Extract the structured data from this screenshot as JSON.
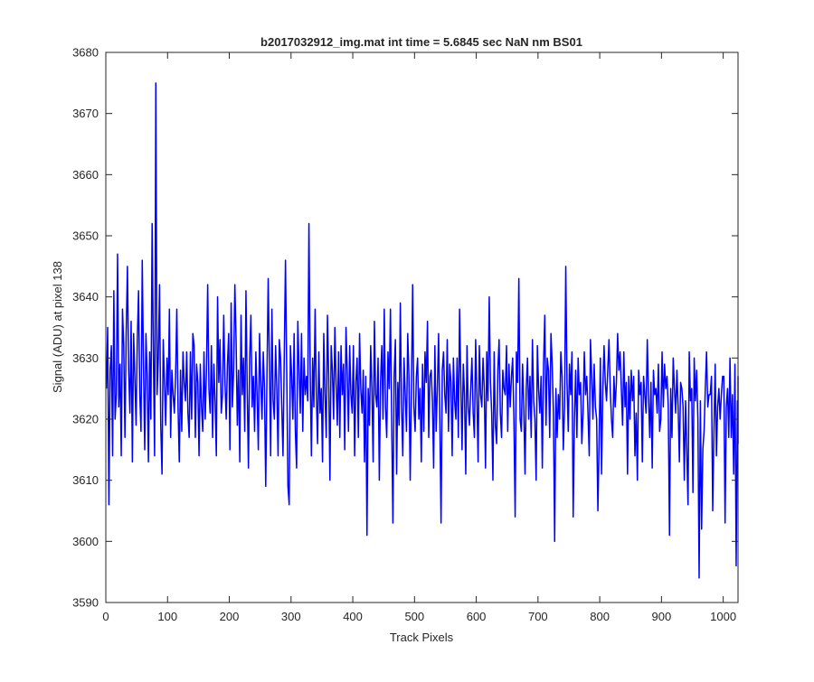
{
  "figure": {
    "background": "#ffffff",
    "axes_color": "#262626",
    "line_color": "#0000ff"
  },
  "chart_data": {
    "type": "line",
    "title": "b2017032912_img.mat int time = 5.6845 sec  NaN nm BS01",
    "xlabel": "Track Pixels",
    "ylabel": "Signal (ADU) at pixel 138",
    "xlim": [
      0,
      1024
    ],
    "ylim": [
      3590,
      3680
    ],
    "xticks": [
      0,
      100,
      200,
      300,
      400,
      500,
      600,
      700,
      800,
      900,
      1000
    ],
    "yticks": [
      3590,
      3600,
      3610,
      3620,
      3630,
      3640,
      3650,
      3660,
      3670,
      3680
    ],
    "grid": false,
    "legend": "none",
    "series": [
      {
        "color": "#0000ff",
        "sampling": "one point every 2 track pixels (downsampled trace of 1024 pixels)",
        "x_start": 1,
        "x_step": 2,
        "values": [
          3625,
          3635,
          3606,
          3628,
          3632,
          3614,
          3641,
          3620,
          3624,
          3647,
          3622,
          3629,
          3614,
          3638,
          3632,
          3617,
          3634,
          3645,
          3628,
          3621,
          3636,
          3613,
          3634,
          3627,
          3619,
          3633,
          3641,
          3624,
          3618,
          3646,
          3629,
          3615,
          3634,
          3627,
          3613,
          3631,
          3620,
          3652,
          3631,
          3614,
          3675,
          3624,
          3630,
          3642,
          3619,
          3611,
          3633,
          3626,
          3619,
          3630,
          3624,
          3638,
          3617,
          3628,
          3624,
          3621,
          3627,
          3638,
          3622,
          3613,
          3628,
          3618,
          3631,
          3626,
          3623,
          3631,
          3621,
          3617,
          3631,
          3620,
          3634,
          3632,
          3617,
          3629,
          3626,
          3614,
          3629,
          3622,
          3618,
          3631,
          3620,
          3628,
          3642,
          3625,
          3621,
          3632,
          3617,
          3629,
          3623,
          3614,
          3640,
          3626,
          3633,
          3621,
          3624,
          3637,
          3626,
          3620,
          3629,
          3634,
          3615,
          3639,
          3622,
          3628,
          3642,
          3633,
          3619,
          3628,
          3613,
          3637,
          3624,
          3630,
          3618,
          3641,
          3625,
          3612,
          3630,
          3637,
          3622,
          3627,
          3618,
          3631,
          3624,
          3615,
          3634,
          3626,
          3620,
          3631,
          3625,
          3609,
          3627,
          3643,
          3629,
          3614,
          3638,
          3623,
          3620,
          3632,
          3625,
          3614,
          3633,
          3630,
          3622,
          3614,
          3630,
          3646,
          3628,
          3609,
          3606,
          3632,
          3627,
          3620,
          3634,
          3618,
          3612,
          3636,
          3628,
          3621,
          3634,
          3618,
          3630,
          3624,
          3627,
          3623,
          3652,
          3628,
          3614,
          3630,
          3622,
          3638,
          3624,
          3616,
          3631,
          3621,
          3625,
          3613,
          3634,
          3624,
          3617,
          3637,
          3627,
          3610,
          3632,
          3628,
          3620,
          3635,
          3626,
          3619,
          3631,
          3617,
          3632,
          3624,
          3629,
          3615,
          3635,
          3628,
          3618,
          3632,
          3624,
          3621,
          3632,
          3614,
          3626,
          3630,
          3617,
          3634,
          3625,
          3621,
          3628,
          3613,
          3627,
          3601,
          3625,
          3619,
          3632,
          3625,
          3613,
          3636,
          3624,
          3622,
          3630,
          3610,
          3626,
          3632,
          3620,
          3638,
          3622,
          3617,
          3631,
          3625,
          3638,
          3620,
          3603,
          3627,
          3633,
          3611,
          3626,
          3619,
          3639,
          3622,
          3614,
          3630,
          3624,
          3618,
          3634,
          3627,
          3610,
          3625,
          3642,
          3622,
          3618,
          3627,
          3630,
          3620,
          3625,
          3613,
          3629,
          3618,
          3631,
          3626,
          3636,
          3617,
          3627,
          3628,
          3623,
          3612,
          3632,
          3618,
          3625,
          3634,
          3620,
          3603,
          3628,
          3631,
          3624,
          3621,
          3633,
          3618,
          3629,
          3626,
          3614,
          3630,
          3623,
          3620,
          3630,
          3617,
          3638,
          3626,
          3615,
          3629,
          3624,
          3611,
          3632,
          3622,
          3619,
          3625,
          3630,
          3621,
          3617,
          3633,
          3624,
          3613,
          3632,
          3624,
          3622,
          3630,
          3625,
          3612,
          3631,
          3623,
          3640,
          3626,
          3621,
          3610,
          3631,
          3619,
          3616,
          3628,
          3633,
          3621,
          3617,
          3628,
          3625,
          3624,
          3632,
          3618,
          3629,
          3622,
          3627,
          3630,
          3620,
          3604,
          3631,
          3626,
          3643,
          3620,
          3618,
          3629,
          3622,
          3611,
          3625,
          3630,
          3620,
          3627,
          3617,
          3633,
          3623,
          3620,
          3610,
          3632,
          3625,
          3621,
          3627,
          3612,
          3629,
          3637,
          3619,
          3630,
          3628,
          3617,
          3634,
          3629,
          3621,
          3600,
          3625,
          3617,
          3624,
          3620,
          3631,
          3627,
          3615,
          3622,
          3645,
          3626,
          3618,
          3629,
          3624,
          3631,
          3604,
          3620,
          3628,
          3617,
          3630,
          3624,
          3626,
          3616,
          3621,
          3631,
          3624,
          3627,
          3621,
          3614,
          3633,
          3627,
          3620,
          3629,
          3622,
          3620,
          3605,
          3616,
          3630,
          3611,
          3625,
          3632,
          3626,
          3623,
          3628,
          3633,
          3625,
          3620,
          3617,
          3627,
          3622,
          3626,
          3634,
          3628,
          3631,
          3625,
          3619,
          3631,
          3622,
          3626,
          3611,
          3627,
          3620,
          3628,
          3623,
          3627,
          3614,
          3621,
          3610,
          3628,
          3624,
          3626,
          3613,
          3627,
          3624,
          3621,
          3633,
          3624,
          3617,
          3626,
          3612,
          3628,
          3624,
          3625,
          3621,
          3629,
          3618,
          3620,
          3631,
          3622,
          3629,
          3625,
          3627,
          3622,
          3601,
          3625,
          3617,
          3630,
          3625,
          3621,
          3628,
          3622,
          3613,
          3626,
          3625,
          3622,
          3610,
          3623,
          3615,
          3606,
          3631,
          3623,
          3625,
          3608,
          3630,
          3623,
          3628,
          3620,
          3594,
          3623,
          3602,
          3615,
          3618,
          3625,
          3631,
          3622,
          3624,
          3624,
          3627,
          3605,
          3618,
          3629,
          3614,
          3622,
          3625,
          3620,
          3624,
          3627,
          3627,
          3603,
          3622,
          3625,
          3617,
          3630,
          3617,
          3624,
          3611,
          3629,
          3596,
          3623,
          3618,
          3624,
          3621,
          3627,
          3627,
          3616,
          3619
        ]
      }
    ]
  }
}
